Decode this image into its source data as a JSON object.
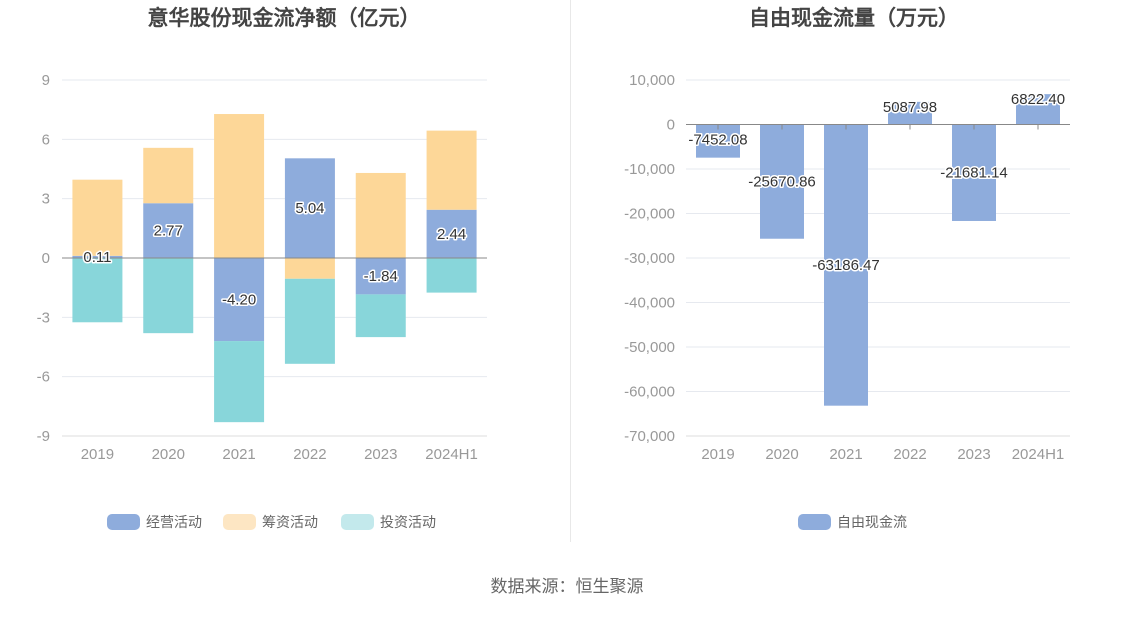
{
  "source": "数据来源：恒生聚源",
  "chart_data": [
    {
      "type": "bar",
      "stacked": true,
      "title": "意华股份现金流净额（亿元）",
      "categories": [
        "2019",
        "2020",
        "2021",
        "2022",
        "2023",
        "2024H1"
      ],
      "ylim": [
        -9,
        9
      ],
      "yticks": [
        9,
        6,
        3,
        0,
        -3,
        -6,
        -9
      ],
      "grid": true,
      "legend_position": "bottom",
      "series": [
        {
          "name": "经营活动",
          "color": "#8eacdc",
          "legend_color": "#8eacdc",
          "values": [
            0.11,
            2.77,
            -4.2,
            5.04,
            -1.84,
            2.44
          ],
          "labels": [
            "0.11",
            "2.77",
            "-4.20",
            "5.04",
            "-1.84",
            "2.44"
          ]
        },
        {
          "name": "筹资活动",
          "color": "#fdd798",
          "legend_color": "#fde6c3",
          "values": [
            3.85,
            2.8,
            7.28,
            -1.05,
            4.3,
            4.0
          ]
        },
        {
          "name": "投资活动",
          "color": "#88d6da",
          "legend_color": "#c3e9ec",
          "values": [
            -3.25,
            -3.8,
            -4.1,
            -4.3,
            -2.16,
            -1.75
          ]
        }
      ]
    },
    {
      "type": "bar",
      "title": "自由现金流量（万元）",
      "categories": [
        "2019",
        "2020",
        "2021",
        "2022",
        "2023",
        "2024H1"
      ],
      "ylim": [
        -70000,
        10000
      ],
      "yticks": [
        "10,000",
        "0",
        "-10,000",
        "-20,000",
        "-30,000",
        "-40,000",
        "-50,000",
        "-60,000",
        "-70,000"
      ],
      "grid": true,
      "legend_position": "bottom",
      "series": [
        {
          "name": "自由现金流",
          "color": "#8eacdc",
          "values": [
            -7452.08,
            -25670.86,
            -63186.47,
            5087.98,
            -21681.14,
            6822.4
          ],
          "labels": [
            "-7452.08",
            "-25670.86",
            "-63186.47",
            "5087.98",
            "-21681.14",
            "6822.40"
          ]
        }
      ]
    }
  ]
}
